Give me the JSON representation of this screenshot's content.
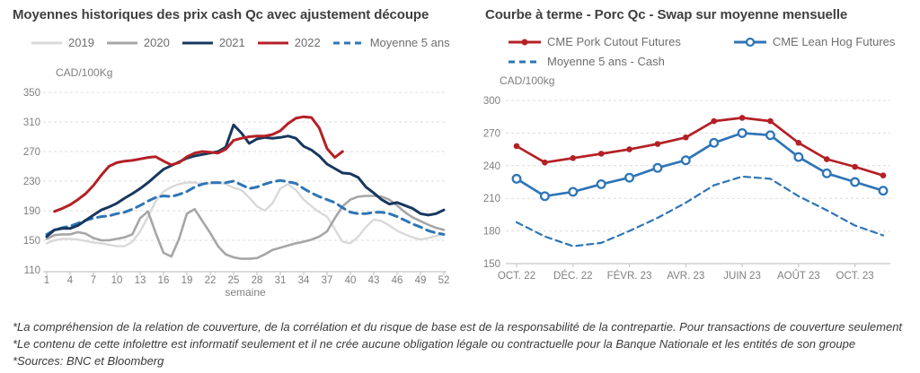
{
  "left_chart": {
    "title": "Moyennes historiques des prix cash Qc avec ajustement découpe",
    "unit_label": "CAD/100Kg",
    "x_axis_label": "semaine"
  },
  "right_chart": {
    "title": "Courbe à terme - Porc Qc - Swap sur moyenne mensuelle",
    "unit_label": "CAD/100kg"
  },
  "footer": {
    "lines": [
      "*La compréhension de la relation de couverture, de la corrélation et du risque de base est de la responsabilité de la contrepartie. Pour transactions de couverture seulement",
      "*Le contenu de cette infolettre est informatif seulement et il ne crée aucune obligation légale ou contractuelle pour la Banque Nationale et les entités de son groupe",
      "*Sources: BNC et Bloomberg"
    ]
  },
  "chart_data": [
    {
      "type": "line",
      "title": "Moyennes historiques des prix cash Qc avec ajustement découpe",
      "ylabel": "CAD/100Kg",
      "xlabel": "semaine",
      "ylim": [
        110,
        350
      ],
      "yticks": [
        110,
        150,
        190,
        230,
        270,
        310,
        350
      ],
      "x": [
        1,
        2,
        3,
        4,
        5,
        6,
        7,
        8,
        9,
        10,
        11,
        12,
        13,
        14,
        15,
        16,
        17,
        18,
        19,
        20,
        21,
        22,
        23,
        24,
        25,
        26,
        27,
        28,
        29,
        30,
        31,
        32,
        33,
        34,
        35,
        36,
        37,
        38,
        39,
        40,
        41,
        42,
        43,
        44,
        45,
        46,
        47,
        48,
        49,
        50,
        51,
        52
      ],
      "xticks": [
        1,
        4,
        7,
        10,
        13,
        16,
        19,
        22,
        25,
        28,
        31,
        34,
        37,
        40,
        43,
        46,
        49,
        52
      ],
      "grid": "horizontal-dashed",
      "legend_position": "top",
      "draw_order": [
        0,
        1,
        4,
        2,
        3
      ],
      "series": [
        {
          "name": "2019",
          "color": "#d9d9d9",
          "style": "solid",
          "width": 2.4,
          "values": [
            146,
            150,
            152,
            152,
            151,
            149,
            147,
            146,
            144,
            142,
            142,
            148,
            162,
            182,
            203,
            216,
            222,
            226,
            228,
            228,
            226,
            227,
            228,
            226,
            221,
            218,
            208,
            196,
            190,
            200,
            220,
            226,
            218,
            205,
            196,
            188,
            182,
            165,
            148,
            146,
            155,
            168,
            178,
            176,
            170,
            163,
            158,
            154,
            151,
            153,
            156,
            158
          ]
        },
        {
          "name": "2020",
          "color": "#a6a6a6",
          "style": "solid",
          "width": 2.6,
          "values": [
            152,
            157,
            158,
            158,
            161,
            159,
            153,
            150,
            150,
            152,
            154,
            158,
            180,
            189,
            160,
            133,
            128,
            152,
            186,
            192,
            176,
            160,
            142,
            131,
            127,
            125,
            125,
            126,
            131,
            137,
            140,
            143,
            146,
            148,
            151,
            155,
            162,
            180,
            196,
            205,
            209,
            210,
            210,
            209,
            205,
            197,
            188,
            181,
            176,
            171,
            167,
            164
          ]
        },
        {
          "name": "2021",
          "color": "#17375e",
          "style": "solid",
          "width": 3,
          "values": [
            155,
            164,
            166,
            166,
            170,
            177,
            184,
            191,
            195,
            200,
            207,
            213,
            220,
            228,
            237,
            246,
            251,
            256,
            261,
            264,
            266,
            268,
            270,
            276,
            306,
            295,
            281,
            287,
            289,
            288,
            289,
            291,
            288,
            277,
            272,
            264,
            253,
            247,
            241,
            240,
            235,
            222,
            214,
            205,
            199,
            201,
            197,
            193,
            186,
            184,
            186,
            191
          ]
        },
        {
          "name": "2022",
          "color": "#b42025",
          "style": "solid",
          "width": 3,
          "values": [
            null,
            189,
            193,
            198,
            205,
            213,
            224,
            238,
            250,
            255,
            257,
            258,
            260,
            262,
            263,
            257,
            252,
            255,
            263,
            268,
            270,
            269,
            268,
            273,
            285,
            288,
            290,
            291,
            291,
            293,
            298,
            308,
            315,
            317,
            316,
            302,
            274,
            262,
            270,
            null,
            null,
            null,
            null,
            null,
            null,
            null,
            null,
            null,
            null,
            null,
            null,
            null
          ]
        },
        {
          "name": "Moyenne 5 ans",
          "color": "#2e75b6",
          "style": "dashed",
          "width": 3,
          "dash": "9 6",
          "values": [
            158,
            164,
            167,
            169,
            173,
            177,
            180,
            182,
            183,
            186,
            188,
            192,
            197,
            203,
            208,
            210,
            209,
            212,
            216,
            222,
            226,
            228,
            228,
            228,
            230,
            225,
            220,
            222,
            226,
            229,
            231,
            229,
            227,
            220,
            214,
            209,
            205,
            201,
            194,
            188,
            186,
            186,
            188,
            188,
            186,
            182,
            177,
            172,
            168,
            163,
            160,
            158
          ]
        }
      ]
    },
    {
      "type": "line",
      "title": "Courbe à terme - Porc Qc - Swap sur moyenne mensuelle",
      "ylabel": "CAD/100kg",
      "ylim": [
        150,
        300
      ],
      "yticks": [
        150,
        180,
        210,
        240,
        270,
        300
      ],
      "x": [
        "OCT. 22",
        "NOV. 22",
        "DÉC. 22",
        "JANV. 23",
        "FÉVR. 23",
        "MARS 23",
        "AVR. 23",
        "MAI 23",
        "JUIN 23",
        "JUIL. 23",
        "AOÛT 23",
        "SEPT. 23",
        "OCT. 23",
        "NOV. 23"
      ],
      "xticks": [
        "OCT. 22",
        "DÉC. 22",
        "FÉVR. 23",
        "AVR. 23",
        "JUIN 23",
        "AOÛT 23",
        "OCT. 23"
      ],
      "grid": "horizontal-dashed",
      "legend_position": "top",
      "draw_order": [
        2,
        0,
        1
      ],
      "series": [
        {
          "name": "CME Pork Cutout Futures",
          "color": "#b42025",
          "style": "solid",
          "width": 2.7,
          "marker": "filled-circle",
          "values": [
            258,
            243,
            247,
            251,
            255,
            260,
            266,
            281,
            284,
            281,
            261,
            246,
            239,
            231
          ]
        },
        {
          "name": "CME Lean Hog Futures",
          "color": "#2e75b6",
          "style": "solid",
          "width": 2.7,
          "marker": "open-circle",
          "values": [
            228,
            212,
            216,
            223,
            229,
            238,
            245,
            261,
            270,
            268,
            248,
            233,
            225,
            217
          ]
        },
        {
          "name": "Moyenne 5 ans - Cash",
          "color": "#2e75b6",
          "style": "dashed",
          "width": 2.2,
          "dash": "7 5",
          "values": [
            188,
            175,
            166,
            169,
            180,
            192,
            206,
            222,
            230,
            228,
            212,
            199,
            185,
            176
          ]
        }
      ]
    }
  ]
}
